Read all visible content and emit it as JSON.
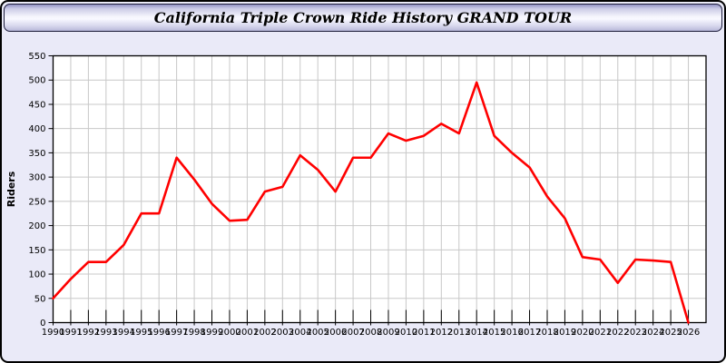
{
  "window": {
    "title": "California Triple Crown Ride History GRAND TOUR"
  },
  "chart_data": {
    "type": "line",
    "title": "California Triple Crown Ride History GRAND TOUR",
    "xlabel": "",
    "ylabel": "Riders",
    "x": [
      1990,
      1991,
      1992,
      1993,
      1994,
      1995,
      1996,
      1997,
      1998,
      1999,
      2000,
      2001,
      2002,
      2003,
      2004,
      2005,
      2006,
      2007,
      2008,
      2009,
      2010,
      2011,
      2012,
      2013,
      2014,
      2015,
      2016,
      2017,
      2018,
      2019,
      2020,
      2021,
      2022,
      2023,
      2024,
      2025,
      2026
    ],
    "series": [
      {
        "name": "Riders",
        "color": "#ff0000",
        "values": [
          50,
          90,
          125,
          125,
          160,
          225,
          225,
          340,
          295,
          245,
          210,
          212,
          270,
          280,
          345,
          315,
          270,
          340,
          340,
          390,
          375,
          385,
          410,
          390,
          495,
          385,
          350,
          320,
          260,
          215,
          135,
          130,
          82,
          130,
          128,
          125,
          0
        ]
      }
    ],
    "ylim": [
      0,
      550
    ],
    "ytick_step": 50,
    "xlim": [
      1990,
      2027
    ],
    "grid": true,
    "legend": "none",
    "styles": {
      "plot_bg": "#ffffff",
      "grid_color": "#c8c8c8",
      "axis_color": "#000000",
      "page_bg": "#eaeaf8",
      "label_color": "#000000"
    }
  }
}
